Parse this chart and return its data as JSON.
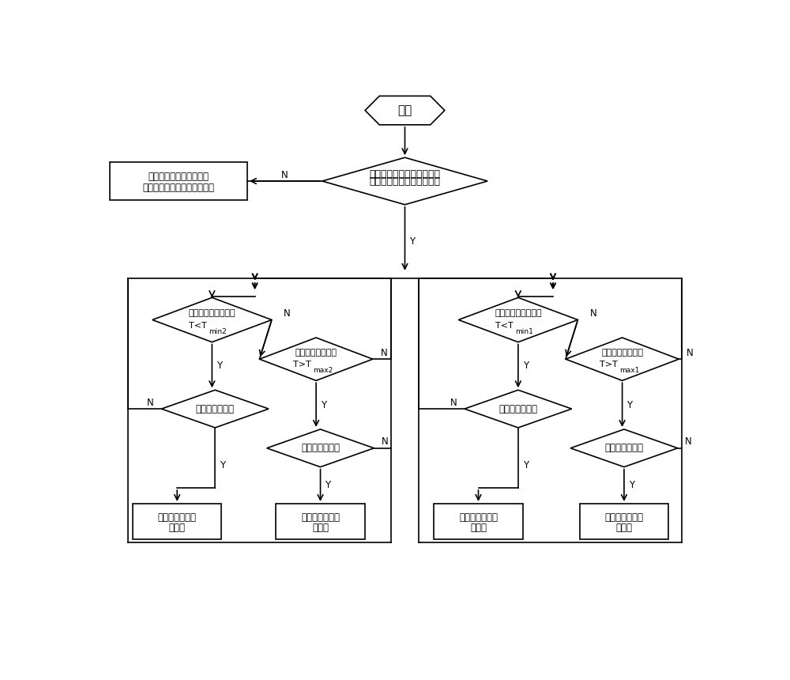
{
  "bg": "#ffffff",
  "lc": "#000000",
  "tc": "#000000",
  "start_text": "开始",
  "d1_text": "是否工作在闭环工作模式？",
  "openloop_line1": "蓄电池温控在开环模式，",
  "openloop_line2": "由地面指令遥控加热回路开关",
  "dl1_l1": "蓄电池组测温电阻値",
  "dl1_l2": "T<T",
  "dl1_sub": "min2",
  "dl2_l1": "蓄电池测温电阻値",
  "dl2_l2": "T>T",
  "dl2_sub": "max2",
  "dl3_text": "加热备回路为关",
  "dl4_text": "加热备回路为开",
  "el1_line1": "开启蓄电池加热",
  "el1_line2": "备回路",
  "el2_line1": "关闭蓄电池加热",
  "el2_line2": "备回路",
  "dr1_l1": "蓄电池组测温电阻値",
  "dr1_l2": "T<T",
  "dr1_sub": "min1",
  "dr2_l1": "蓄电池温度测量値",
  "dr2_l2": "T>T",
  "dr2_sub": "max1",
  "dr3_text": "加热主回路为关",
  "dr4_text": "加热主回路为开",
  "er1_line1": "开启蓄电池加热",
  "er1_line2": "主回路",
  "er2_line1": "关闭蓄电池加热",
  "er2_line2": "主回路"
}
